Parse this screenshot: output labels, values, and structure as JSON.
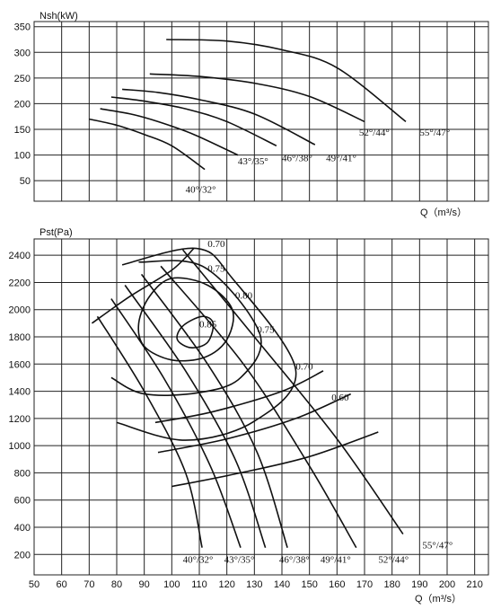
{
  "chart_data": [
    {
      "type": "line",
      "ylabel": "Nsh(kW)",
      "xlabel": "Q（m³/s）",
      "xlim": [
        50,
        215
      ],
      "ylim": [
        10,
        360
      ],
      "yticks": [
        50,
        100,
        150,
        200,
        250,
        300,
        350
      ],
      "grid": true,
      "series": [
        {
          "name": "40°/32°",
          "points": [
            [
              70,
              170
            ],
            [
              80,
              158
            ],
            [
              90,
              140
            ],
            [
              100,
              118
            ],
            [
              112,
              72
            ]
          ],
          "label_at": [
            105,
            27
          ]
        },
        {
          "name": "43°/35°",
          "points": [
            [
              74,
              190
            ],
            [
              85,
              180
            ],
            [
              95,
              165
            ],
            [
              108,
              140
            ],
            [
              124,
              100
            ]
          ],
          "label_at": [
            124,
            82
          ]
        },
        {
          "name": "46°/38°",
          "points": [
            [
              78,
              213
            ],
            [
              90,
              205
            ],
            [
              105,
              190
            ],
            [
              120,
              165
            ],
            [
              138,
              118
            ]
          ],
          "label_at": [
            140,
            88
          ]
        },
        {
          "name": "49°/41°",
          "points": [
            [
              82,
              228
            ],
            [
              95,
              222
            ],
            [
              110,
              208
            ],
            [
              130,
              180
            ],
            [
              152,
              120
            ]
          ],
          "label_at": [
            156,
            88
          ]
        },
        {
          "name": "52°/44°",
          "points": [
            [
              92,
              258
            ],
            [
              110,
              253
            ],
            [
              130,
              240
            ],
            [
              150,
              214
            ],
            [
              170,
              165
            ]
          ],
          "label_at": [
            168,
            138
          ]
        },
        {
          "name": "55°/47°",
          "points": [
            [
              98,
              325
            ],
            [
              120,
              322
            ],
            [
              140,
              305
            ],
            [
              160,
              270
            ],
            [
              185,
              165
            ]
          ],
          "label_at": [
            190,
            138
          ]
        }
      ]
    },
    {
      "type": "line",
      "ylabel": "Pst(Pa)",
      "xlabel": "Q（m³/s）",
      "xlim": [
        50,
        215
      ],
      "xticks": [
        50,
        60,
        70,
        80,
        90,
        100,
        110,
        120,
        130,
        140,
        150,
        160,
        170,
        180,
        190,
        200,
        210
      ],
      "ylim": [
        50,
        2520
      ],
      "yticks": [
        200,
        400,
        600,
        800,
        1000,
        1200,
        1400,
        1600,
        1800,
        2000,
        2200,
        2400
      ],
      "grid": true,
      "blade_angle_series": [
        {
          "name": "40°/32°",
          "points": [
            [
              73,
              1950
            ],
            [
              90,
              1400
            ],
            [
              105,
              800
            ],
            [
              111,
              250
            ]
          ],
          "label_at": [
            104,
            140
          ]
        },
        {
          "name": "43°/35°",
          "points": [
            [
              78,
              2080
            ],
            [
              97,
              1500
            ],
            [
              114,
              850
            ],
            [
              125,
              250
            ]
          ],
          "label_at": [
            119,
            140
          ]
        },
        {
          "name": "46°/38°",
          "points": [
            [
              83,
              2180
            ],
            [
              105,
              1550
            ],
            [
              123,
              900
            ],
            [
              134,
              250
            ]
          ],
          "label_at": [
            139,
            140
          ]
        },
        {
          "name": "49°/41°",
          "points": [
            [
              89,
              2260
            ],
            [
              113,
              1600
            ],
            [
              131,
              950
            ],
            [
              142,
              250
            ]
          ],
          "label_at": [
            154,
            140
          ]
        },
        {
          "name": "52°/44°",
          "points": [
            [
              96,
              2320
            ],
            [
              126,
              1600
            ],
            [
              150,
              850
            ],
            [
              167,
              250
            ]
          ],
          "label_at": [
            175,
            140
          ]
        },
        {
          "name": "55°/47°",
          "points": [
            [
              104,
              2440
            ],
            [
              130,
              1800
            ],
            [
              160,
              1050
            ],
            [
              184,
              350
            ]
          ],
          "label_at": [
            191,
            245
          ]
        }
      ],
      "resistance_series": [
        {
          "points": [
            [
              71,
              1900
            ],
            [
              85,
              2100
            ],
            [
              100,
              2290
            ],
            [
              108,
              2450
            ]
          ]
        },
        {
          "points": [
            [
              100,
              700
            ],
            [
              125,
              800
            ],
            [
              150,
              920
            ],
            [
              175,
              1100
            ]
          ]
        },
        {
          "points": [
            [
              95,
              950
            ],
            [
              120,
              1050
            ],
            [
              145,
              1200
            ],
            [
              165,
              1380
            ]
          ]
        },
        {
          "points": [
            [
              94,
              1170
            ],
            [
              115,
              1250
            ],
            [
              140,
              1400
            ],
            [
              155,
              1550
            ]
          ]
        }
      ],
      "efficiency_contours": [
        {
          "label": "0.85",
          "points": [
            [
              111,
              1950
            ],
            [
              115,
              1900
            ],
            [
              113,
              1760
            ],
            [
              107,
              1720
            ],
            [
              102,
              1780
            ],
            [
              104,
              1880
            ]
          ],
          "closed": true,
          "label_at": [
            110,
            1870
          ]
        },
        {
          "label": "0.80",
          "points": [
            [
              100,
              2230
            ],
            [
              113,
              2180
            ],
            [
              122,
              2000
            ],
            [
              120,
              1780
            ],
            [
              112,
              1650
            ],
            [
              100,
              1630
            ],
            [
              90,
              1730
            ],
            [
              88,
              1900
            ],
            [
              92,
              2100
            ]
          ],
          "closed": true,
          "label_at": [
            123,
            2080
          ]
        },
        {
          "label": "0.75",
          "points": [
            [
              88,
              2350
            ],
            [
              112,
              2310
            ],
            [
              132,
              1820
            ],
            [
              125,
              1500
            ],
            [
              110,
              1390
            ],
            [
              90,
              1380
            ],
            [
              78,
              1500
            ]
          ],
          "closed": false,
          "label_at": [
            113,
            2280
          ]
        },
        {
          "label": "0.75",
          "points": [],
          "label_at": [
            131,
            1830
          ]
        },
        {
          "label": "0.70",
          "points": [
            [
              82,
              2330
            ],
            [
              109,
              2450
            ],
            [
              122,
              2230
            ],
            [
              145,
              1560
            ],
            [
              130,
              1180
            ],
            [
              105,
              1040
            ],
            [
              80,
              1170
            ]
          ],
          "closed": false,
          "label_at": [
            113,
            2460
          ]
        },
        {
          "label": "0.70",
          "points": [],
          "label_at": [
            145,
            1560
          ]
        },
        {
          "label": "0.60",
          "points": [],
          "label_at": [
            158,
            1330
          ]
        }
      ]
    }
  ]
}
